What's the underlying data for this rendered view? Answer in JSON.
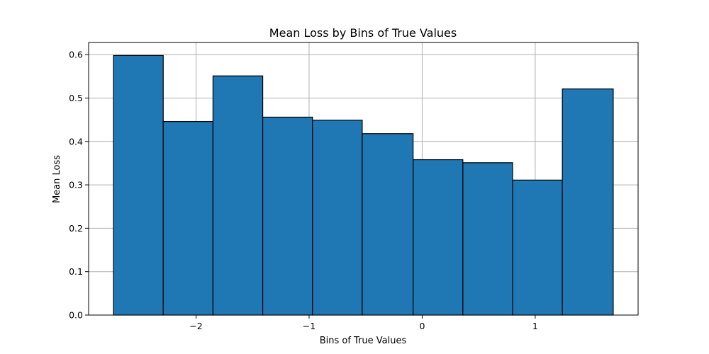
{
  "chart_data": {
    "type": "bar",
    "title": "Mean Loss by Bins of True Values",
    "xlabel": "Bins of True Values",
    "ylabel": "Mean Loss",
    "bin_edges": [
      -2.73,
      -2.29,
      -1.85,
      -1.41,
      -0.97,
      -0.53,
      -0.08,
      0.36,
      0.8,
      1.24,
      1.69
    ],
    "values": [
      0.598,
      0.446,
      0.551,
      0.456,
      0.449,
      0.418,
      0.358,
      0.351,
      0.311,
      0.521
    ],
    "xlim": [
      -2.95,
      1.91
    ],
    "ylim": [
      0.0,
      0.628
    ],
    "xticks": [
      -2,
      -1,
      0,
      1
    ],
    "xtick_labels": [
      "−2",
      "−1",
      "0",
      "1"
    ],
    "yticks": [
      0.0,
      0.1,
      0.2,
      0.3,
      0.4,
      0.5,
      0.6
    ],
    "ytick_labels": [
      "0.0",
      "0.1",
      "0.2",
      "0.3",
      "0.4",
      "0.5",
      "0.6"
    ],
    "grid": true,
    "bar_color": "#1f77b4",
    "edge_color": "#000000"
  }
}
